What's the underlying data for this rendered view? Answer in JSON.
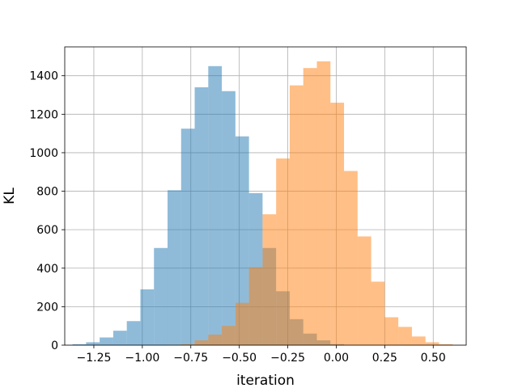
{
  "chart_data": {
    "type": "bar",
    "title": "",
    "xlabel": "iteration",
    "ylabel": "KL",
    "xlim": [
      -1.4,
      0.67
    ],
    "ylim": [
      0,
      1550
    ],
    "grid": true,
    "legend": "none",
    "xticks": [
      -1.25,
      -1.0,
      -0.75,
      -0.5,
      -0.25,
      0.0,
      0.25,
      0.5
    ],
    "xtick_labels": [
      "−1.25",
      "−1.00",
      "−0.75",
      "−0.50",
      "−0.25",
      "0.00",
      "0.25",
      "0.50"
    ],
    "yticks": [
      0,
      200,
      400,
      600,
      800,
      1000,
      1200,
      1400
    ],
    "ytick_labels": [
      "0",
      "200",
      "400",
      "600",
      "800",
      "1000",
      "1200",
      "1400"
    ],
    "series": [
      {
        "color": "#1f77b4",
        "opacity": 0.5,
        "bin_edges": [
          -1.36,
          -1.29,
          -1.22,
          -1.15,
          -1.08,
          -1.01,
          -0.94,
          -0.87,
          -0.8,
          -0.73,
          -0.66,
          -0.59,
          -0.52,
          -0.45,
          -0.38,
          -0.31,
          -0.24,
          -0.17,
          -0.1,
          -0.03,
          0.04
        ],
        "counts": [
          5,
          15,
          40,
          75,
          125,
          290,
          505,
          805,
          1125,
          1340,
          1450,
          1320,
          1085,
          790,
          505,
          280,
          135,
          60,
          25,
          5
        ]
      },
      {
        "color": "#ff7f0e",
        "opacity": 0.5,
        "bin_edges": [
          -0.87,
          -0.8,
          -0.73,
          -0.66,
          -0.59,
          -0.52,
          -0.45,
          -0.38,
          -0.31,
          -0.24,
          -0.17,
          -0.1,
          -0.03,
          0.04,
          0.11,
          0.18,
          0.25,
          0.32,
          0.39,
          0.46,
          0.53,
          0.6
        ],
        "counts": [
          2,
          5,
          25,
          55,
          100,
          220,
          405,
          680,
          970,
          1350,
          1440,
          1475,
          1260,
          905,
          565,
          330,
          145,
          95,
          45,
          15,
          5
        ]
      }
    ]
  }
}
